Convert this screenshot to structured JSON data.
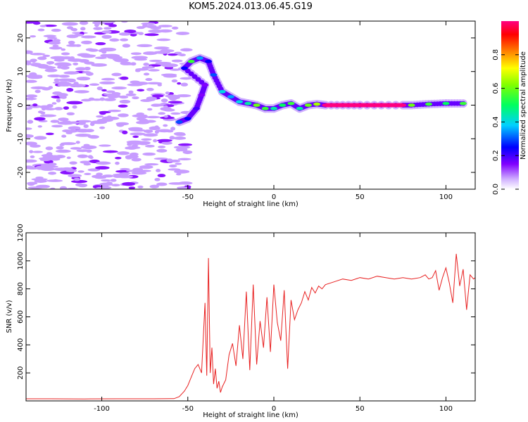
{
  "title": "KOM5.2024.013.06.45.G19",
  "chart_data": [
    {
      "type": "heatmap",
      "xlabel": "Height of straight line (km)",
      "ylabel": "Frequency (Hz)",
      "xlim": [
        -144,
        117
      ],
      "ylim": [
        -25,
        25
      ],
      "xticks": [
        -100,
        -50,
        0,
        50,
        100
      ],
      "yticks": [
        -20,
        -10,
        0,
        10,
        20
      ],
      "colorbar": {
        "label": "Normalized spectral amplitude",
        "ticks": [
          "0.0",
          "0.2",
          "0.4",
          "0.6",
          "0.8"
        ],
        "range": [
          0,
          1
        ]
      },
      "ridge": [
        {
          "x": -55,
          "y": -5,
          "v": 0.3
        },
        {
          "x": -50,
          "y": -4,
          "v": 0.25
        },
        {
          "x": -45,
          "y": -1,
          "v": 0.2
        },
        {
          "x": -42,
          "y": 3,
          "v": 0.15
        },
        {
          "x": -40,
          "y": 6,
          "v": 0.15
        },
        {
          "x": -52,
          "y": 11,
          "v": 0.25
        },
        {
          "x": -48,
          "y": 13,
          "v": 0.55
        },
        {
          "x": -43,
          "y": 14,
          "v": 0.35
        },
        {
          "x": -38,
          "y": 13,
          "v": 0.25
        },
        {
          "x": -35,
          "y": 9,
          "v": 0.3
        },
        {
          "x": -30,
          "y": 4,
          "v": 0.4
        },
        {
          "x": -25,
          "y": 2.5,
          "v": 0.35
        },
        {
          "x": -20,
          "y": 1,
          "v": 0.4
        },
        {
          "x": -15,
          "y": 0.5,
          "v": 0.45
        },
        {
          "x": -10,
          "y": 0,
          "v": 0.6
        },
        {
          "x": -5,
          "y": -1,
          "v": 0.55
        },
        {
          "x": 0,
          "y": -1,
          "v": 0.45
        },
        {
          "x": 5,
          "y": 0,
          "v": 0.5
        },
        {
          "x": 10,
          "y": 0.5,
          "v": 0.55
        },
        {
          "x": 15,
          "y": -1,
          "v": 0.45
        },
        {
          "x": 20,
          "y": 0,
          "v": 0.6
        },
        {
          "x": 25,
          "y": 0.3,
          "v": 0.65
        },
        {
          "x": 30,
          "y": 0,
          "v": 1.0
        },
        {
          "x": 50,
          "y": 0,
          "v": 1.0
        },
        {
          "x": 75,
          "y": 0,
          "v": 1.0
        },
        {
          "x": 80,
          "y": 0,
          "v": 0.6
        },
        {
          "x": 90,
          "y": 0.3,
          "v": 0.55
        },
        {
          "x": 100,
          "y": 0.5,
          "v": 0.5
        },
        {
          "x": 110,
          "y": 0.5,
          "v": 0.55
        }
      ]
    },
    {
      "type": "line",
      "xlabel": "Height of straight line (km)",
      "ylabel": "SNR (v/v)",
      "xlim": [
        -144,
        117
      ],
      "ylim": [
        0,
        1200
      ],
      "xticks": [
        -100,
        -50,
        0,
        50,
        100
      ],
      "yticks": [
        200,
        400,
        600,
        800,
        1000,
        1200
      ],
      "color": "#e82020",
      "series": [
        {
          "x": [
            -144,
            -130,
            -110,
            -90,
            -70,
            -58,
            -55,
            -52,
            -50,
            -48,
            -46,
            -44,
            -42,
            -40,
            -39,
            -38,
            -37,
            -36,
            -35,
            -34,
            -33,
            -32,
            -31,
            -30,
            -28,
            -26,
            -24,
            -22,
            -20,
            -18,
            -16,
            -14,
            -12,
            -10,
            -8,
            -6,
            -4,
            -2,
            0,
            2,
            4,
            6,
            8,
            10,
            12,
            14,
            16,
            18,
            20,
            22,
            24,
            26,
            28,
            30,
            35,
            40,
            45,
            50,
            55,
            60,
            65,
            70,
            75,
            80,
            85,
            88,
            90,
            92,
            94,
            96,
            98,
            100,
            102,
            104,
            106,
            108,
            110,
            112,
            114,
            116,
            117
          ],
          "y": [
            15,
            15,
            14,
            15,
            15,
            16,
            30,
            70,
            110,
            170,
            230,
            260,
            200,
            700,
            180,
            1020,
            200,
            380,
            120,
            230,
            90,
            140,
            60,
            100,
            150,
            330,
            410,
            250,
            540,
            300,
            780,
            220,
            830,
            260,
            570,
            380,
            740,
            350,
            830,
            560,
            430,
            790,
            230,
            720,
            580,
            650,
            700,
            780,
            720,
            810,
            770,
            820,
            800,
            830,
            850,
            870,
            860,
            880,
            870,
            890,
            880,
            870,
            880,
            870,
            880,
            900,
            870,
            880,
            930,
            790,
            880,
            950,
            840,
            700,
            1050,
            820,
            940,
            650,
            900,
            870,
            880
          ]
        }
      ]
    }
  ]
}
